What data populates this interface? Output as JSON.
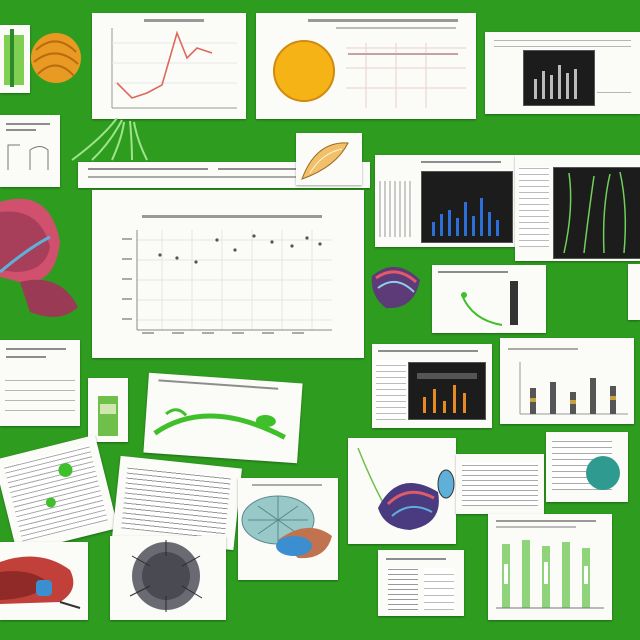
{
  "colors": {
    "background": "#2e9c1f",
    "card": "#fbfbf8",
    "line": "#e0685a",
    "sun": "#f5b316",
    "blue_bar": "#2d6fd8",
    "orange_bar": "#e88a22",
    "green_sprout": "#3fbf2a",
    "leaf_red": "#c2403a",
    "leaf_blue": "#3b8fd0"
  },
  "icons": [
    "leaf-illustration-icon",
    "fruit-slice-icon",
    "seed-pod-icon",
    "bird-head-icon",
    "fur-texture-icon",
    "yarn-ball-icon",
    "sun-circle-icon",
    "plant-sprout-icon"
  ]
}
